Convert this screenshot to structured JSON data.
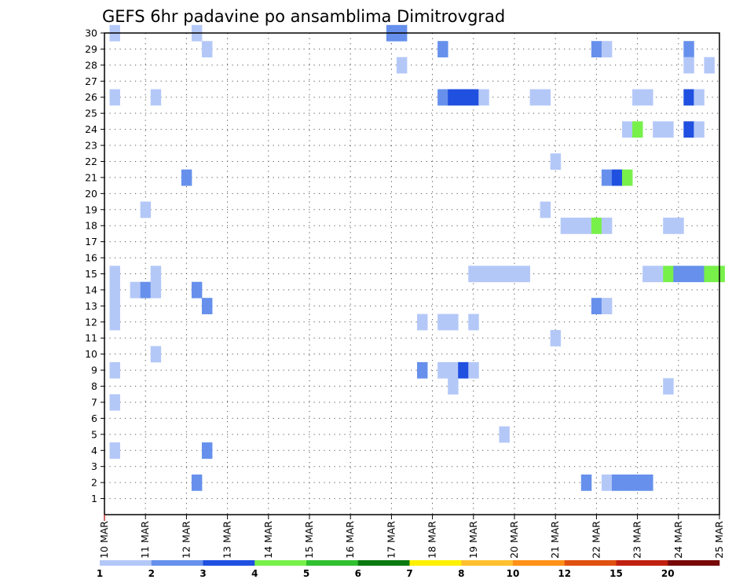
{
  "chart_data": {
    "type": "heatmap",
    "title": "GEFS 6hr padavine po ansamblima Dimitrovgrad",
    "xlabel": "",
    "ylabel": "",
    "x_ticks": [
      "10 MAR",
      "11 MAR",
      "12 MAR",
      "13 MAR",
      "14 MAR",
      "15 MAR",
      "16 MAR",
      "17 MAR",
      "18 MAR",
      "19 MAR",
      "20 MAR",
      "21 MAR",
      "22 MAR",
      "23 MAR",
      "24 MAR",
      "25 MAR"
    ],
    "y_ticks": [
      1,
      2,
      3,
      4,
      5,
      6,
      7,
      8,
      9,
      10,
      11,
      12,
      13,
      14,
      15,
      16,
      17,
      18,
      19,
      20,
      21,
      22,
      23,
      24,
      25,
      26,
      27,
      28,
      29,
      30
    ],
    "x_range_days": [
      10,
      25
    ],
    "y_range": [
      0,
      30
    ],
    "grid": true,
    "colorbar": {
      "labels": [
        "1",
        "2",
        "3",
        "4",
        "5",
        "6",
        "7",
        "8",
        "10",
        "12",
        "15",
        "20"
      ],
      "colors": [
        "#b4c8f8",
        "#6690ec",
        "#2050e0",
        "#78f04a",
        "#30c030",
        "#0a7a10",
        "#fff000",
        "#ffc030",
        "#ff9018",
        "#e05010",
        "#c02010",
        "#780808"
      ]
    },
    "cells": [
      {
        "day": 10.25,
        "member": 30,
        "level": 1
      },
      {
        "day": 12.25,
        "member": 30,
        "level": 1
      },
      {
        "day": 17.0,
        "member": 30,
        "level": 2
      },
      {
        "day": 17.25,
        "member": 30,
        "level": 2
      },
      {
        "day": 12.5,
        "member": 29,
        "level": 1
      },
      {
        "day": 18.25,
        "member": 29,
        "level": 2
      },
      {
        "day": 22.0,
        "member": 29,
        "level": 2
      },
      {
        "day": 22.25,
        "member": 29,
        "level": 1
      },
      {
        "day": 24.25,
        "member": 29,
        "level": 2
      },
      {
        "day": 17.25,
        "member": 28,
        "level": 1
      },
      {
        "day": 24.25,
        "member": 28,
        "level": 1
      },
      {
        "day": 24.75,
        "member": 28,
        "level": 1
      },
      {
        "day": 10.25,
        "member": 26,
        "level": 1
      },
      {
        "day": 11.25,
        "member": 26,
        "level": 1
      },
      {
        "day": 18.25,
        "member": 26,
        "level": 2
      },
      {
        "day": 18.5,
        "member": 26,
        "level": 3
      },
      {
        "day": 18.75,
        "member": 26,
        "level": 3
      },
      {
        "day": 19.0,
        "member": 26,
        "level": 3
      },
      {
        "day": 19.25,
        "member": 26,
        "level": 1
      },
      {
        "day": 20.5,
        "member": 26,
        "level": 1
      },
      {
        "day": 20.75,
        "member": 26,
        "level": 1
      },
      {
        "day": 23.0,
        "member": 26,
        "level": 1
      },
      {
        "day": 23.25,
        "member": 26,
        "level": 1
      },
      {
        "day": 24.25,
        "member": 26,
        "level": 3
      },
      {
        "day": 24.5,
        "member": 26,
        "level": 1
      },
      {
        "day": 22.75,
        "member": 24,
        "level": 1
      },
      {
        "day": 23.0,
        "member": 24,
        "level": 4
      },
      {
        "day": 23.5,
        "member": 24,
        "level": 1
      },
      {
        "day": 23.75,
        "member": 24,
        "level": 1
      },
      {
        "day": 24.25,
        "member": 24,
        "level": 3
      },
      {
        "day": 24.5,
        "member": 24,
        "level": 1
      },
      {
        "day": 21.0,
        "member": 22,
        "level": 1
      },
      {
        "day": 12.0,
        "member": 21,
        "level": 2
      },
      {
        "day": 22.25,
        "member": 21,
        "level": 2
      },
      {
        "day": 22.5,
        "member": 21,
        "level": 3
      },
      {
        "day": 22.75,
        "member": 21,
        "level": 4
      },
      {
        "day": 11.0,
        "member": 19,
        "level": 1
      },
      {
        "day": 20.75,
        "member": 19,
        "level": 1
      },
      {
        "day": 21.25,
        "member": 18,
        "level": 1
      },
      {
        "day": 21.5,
        "member": 18,
        "level": 1
      },
      {
        "day": 21.75,
        "member": 18,
        "level": 1
      },
      {
        "day": 22.0,
        "member": 18,
        "level": 4
      },
      {
        "day": 22.25,
        "member": 18,
        "level": 1
      },
      {
        "day": 23.75,
        "member": 18,
        "level": 1
      },
      {
        "day": 24.0,
        "member": 18,
        "level": 1
      },
      {
        "day": 10.25,
        "member": 15,
        "level": 1
      },
      {
        "day": 11.25,
        "member": 15,
        "level": 1
      },
      {
        "day": 19.0,
        "member": 15,
        "level": 1
      },
      {
        "day": 19.25,
        "member": 15,
        "level": 1
      },
      {
        "day": 19.5,
        "member": 15,
        "level": 1
      },
      {
        "day": 19.75,
        "member": 15,
        "level": 1
      },
      {
        "day": 20.0,
        "member": 15,
        "level": 1
      },
      {
        "day": 20.25,
        "member": 15,
        "level": 1
      },
      {
        "day": 23.25,
        "member": 15,
        "level": 1
      },
      {
        "day": 23.5,
        "member": 15,
        "level": 1
      },
      {
        "day": 23.75,
        "member": 15,
        "level": 4
      },
      {
        "day": 24.0,
        "member": 15,
        "level": 2
      },
      {
        "day": 24.25,
        "member": 15,
        "level": 2
      },
      {
        "day": 24.5,
        "member": 15,
        "level": 2
      },
      {
        "day": 24.75,
        "member": 15,
        "level": 4
      },
      {
        "day": 25.0,
        "member": 15,
        "level": 4
      },
      {
        "day": 10.25,
        "member": 14,
        "level": 1
      },
      {
        "day": 10.75,
        "member": 14,
        "level": 1
      },
      {
        "day": 11.0,
        "member": 14,
        "level": 2
      },
      {
        "day": 11.25,
        "member": 14,
        "level": 1
      },
      {
        "day": 12.25,
        "member": 14,
        "level": 2
      },
      {
        "day": 10.25,
        "member": 13,
        "level": 1
      },
      {
        "day": 12.5,
        "member": 13,
        "level": 2
      },
      {
        "day": 22.0,
        "member": 13,
        "level": 2
      },
      {
        "day": 22.25,
        "member": 13,
        "level": 1
      },
      {
        "day": 10.25,
        "member": 12,
        "level": 1
      },
      {
        "day": 17.75,
        "member": 12,
        "level": 1
      },
      {
        "day": 18.25,
        "member": 12,
        "level": 1
      },
      {
        "day": 18.5,
        "member": 12,
        "level": 1
      },
      {
        "day": 19.0,
        "member": 12,
        "level": 1
      },
      {
        "day": 21.0,
        "member": 11,
        "level": 1
      },
      {
        "day": 11.25,
        "member": 10,
        "level": 1
      },
      {
        "day": 10.25,
        "member": 9,
        "level": 1
      },
      {
        "day": 17.75,
        "member": 9,
        "level": 2
      },
      {
        "day": 18.25,
        "member": 9,
        "level": 1
      },
      {
        "day": 18.5,
        "member": 9,
        "level": 1
      },
      {
        "day": 18.75,
        "member": 9,
        "level": 3
      },
      {
        "day": 19.0,
        "member": 9,
        "level": 1
      },
      {
        "day": 18.5,
        "member": 8,
        "level": 1
      },
      {
        "day": 23.75,
        "member": 8,
        "level": 1
      },
      {
        "day": 10.25,
        "member": 7,
        "level": 1
      },
      {
        "day": 19.75,
        "member": 5,
        "level": 1
      },
      {
        "day": 10.25,
        "member": 4,
        "level": 1
      },
      {
        "day": 12.5,
        "member": 4,
        "level": 2
      },
      {
        "day": 12.25,
        "member": 2,
        "level": 2
      },
      {
        "day": 21.75,
        "member": 2,
        "level": 2
      },
      {
        "day": 22.25,
        "member": 2,
        "level": 1
      },
      {
        "day": 22.5,
        "member": 2,
        "level": 2
      },
      {
        "day": 22.75,
        "member": 2,
        "level": 2
      },
      {
        "day": 23.0,
        "member": 2,
        "level": 2
      },
      {
        "day": 23.25,
        "member": 2,
        "level": 2
      }
    ]
  }
}
